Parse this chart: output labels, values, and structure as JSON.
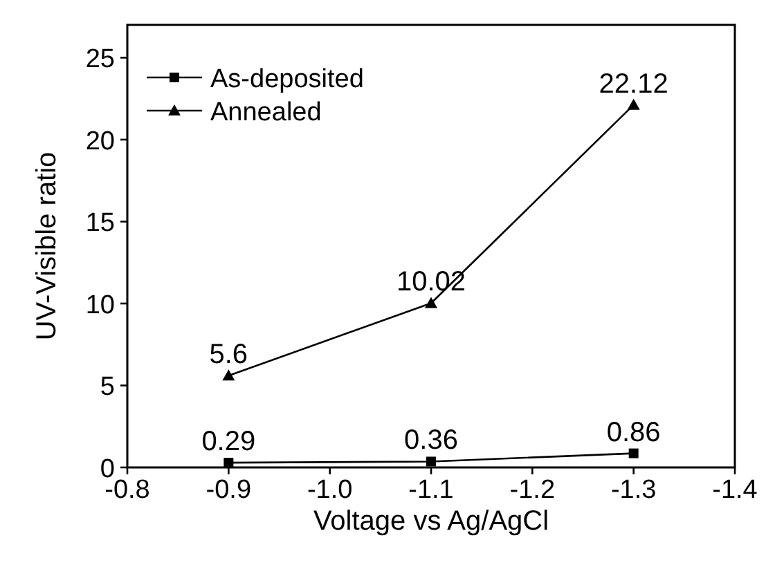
{
  "chart_data": {
    "type": "line",
    "xlabel": "Voltage vs Ag/AgCl",
    "ylabel": "UV-Visible ratio",
    "x": [
      -0.9,
      -1.1,
      -1.3
    ],
    "xlim": [
      -0.8,
      -1.4
    ],
    "xticks": [
      {
        "value": -0.8,
        "label": "-0.8"
      },
      {
        "value": -0.9,
        "label": "-0.9"
      },
      {
        "value": -1.0,
        "label": "-1.0"
      },
      {
        "value": -1.1,
        "label": "-1.1"
      },
      {
        "value": -1.2,
        "label": "-1.2"
      },
      {
        "value": -1.3,
        "label": "-1.3"
      },
      {
        "value": -1.4,
        "label": "-1.4"
      }
    ],
    "ylim": [
      0,
      27
    ],
    "yticks": [
      0,
      5,
      10,
      15,
      20,
      25
    ],
    "series": [
      {
        "name": "As-deposited",
        "color": "#000000",
        "marker": "square",
        "values": [
          0.29,
          0.36,
          0.86
        ]
      },
      {
        "name": "Annealed",
        "color": "#000000",
        "marker": "triangle",
        "values": [
          5.6,
          10.02,
          22.12
        ]
      }
    ],
    "data_labels": true,
    "legend": "top left",
    "grid": false,
    "line_style": "solid"
  }
}
